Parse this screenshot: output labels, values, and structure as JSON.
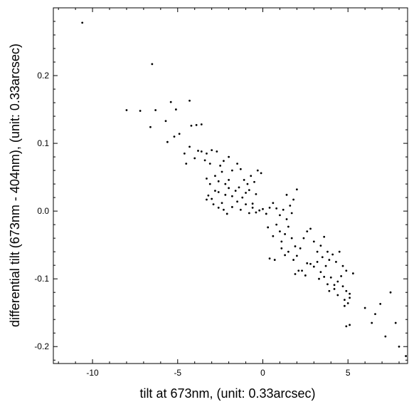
{
  "chart_data": {
    "type": "scatter",
    "title": "",
    "xlabel": "tilt at 673nm, (unit: 0.33arcsec)",
    "ylabel": "differential tilt (673nm - 404nm), (unit: 0.33arcsec)",
    "xlim": [
      -12.3,
      8.5
    ],
    "ylim": [
      -0.225,
      0.3
    ],
    "x_ticks": [
      -10,
      -5,
      0,
      5
    ],
    "x_tick_labels": [
      "-10",
      "-5",
      "0",
      "5"
    ],
    "y_ticks": [
      -0.2,
      -0.1,
      0.0,
      0.1,
      0.2
    ],
    "y_tick_labels": [
      "-0.2",
      "-0.1",
      "0.0",
      "0.1",
      "0.2"
    ],
    "grid": false,
    "marker_color": "#000000",
    "points": [
      [
        -10.6,
        0.278
      ],
      [
        -6.5,
        0.217
      ],
      [
        -8.0,
        0.149
      ],
      [
        -7.2,
        0.148
      ],
      [
        -6.6,
        0.124
      ],
      [
        -6.3,
        0.149
      ],
      [
        -5.7,
        0.133
      ],
      [
        -5.4,
        0.161
      ],
      [
        -5.1,
        0.15
      ],
      [
        -4.3,
        0.163
      ],
      [
        -5.6,
        0.102
      ],
      [
        -5.2,
        0.11
      ],
      [
        -4.9,
        0.114
      ],
      [
        -4.2,
        0.126
      ],
      [
        -3.9,
        0.127
      ],
      [
        -3.6,
        0.128
      ],
      [
        -4.6,
        0.085
      ],
      [
        -4.5,
        0.07
      ],
      [
        -4.3,
        0.095
      ],
      [
        -4.0,
        0.078
      ],
      [
        -3.8,
        0.089
      ],
      [
        -3.6,
        0.088
      ],
      [
        -3.3,
        0.085
      ],
      [
        -3.0,
        0.09
      ],
      [
        -2.7,
        0.088
      ],
      [
        -2.5,
        0.067
      ],
      [
        -2.3,
        0.074
      ],
      [
        -2.0,
        0.08
      ],
      [
        -3.4,
        0.075
      ],
      [
        -3.1,
        0.07
      ],
      [
        -3.3,
        0.048
      ],
      [
        -3.1,
        0.04
      ],
      [
        -2.8,
        0.052
      ],
      [
        -2.6,
        0.044
      ],
      [
        -2.4,
        0.058
      ],
      [
        -2.2,
        0.04
      ],
      [
        -2.0,
        0.046
      ],
      [
        -1.8,
        0.06
      ],
      [
        -1.5,
        0.07
      ],
      [
        -1.3,
        0.062
      ],
      [
        -1.1,
        0.046
      ],
      [
        -0.9,
        0.04
      ],
      [
        -0.7,
        0.052
      ],
      [
        -0.5,
        0.043
      ],
      [
        -0.3,
        0.06
      ],
      [
        -0.1,
        0.056
      ],
      [
        -3.2,
        0.023
      ],
      [
        -3.0,
        0.018
      ],
      [
        -2.8,
        0.03
      ],
      [
        -2.6,
        0.028
      ],
      [
        -2.4,
        0.012
      ],
      [
        -2.2,
        0.024
      ],
      [
        -2.0,
        0.034
      ],
      [
        -1.8,
        0.022
      ],
      [
        -1.6,
        0.03
      ],
      [
        -1.4,
        0.035
      ],
      [
        -1.2,
        0.02
      ],
      [
        -1.0,
        0.027
      ],
      [
        -0.8,
        0.031
      ],
      [
        -0.6,
        0.011
      ],
      [
        -0.4,
        0.025
      ],
      [
        -3.3,
        0.017
      ],
      [
        -2.9,
        0.01
      ],
      [
        -2.6,
        0.005
      ],
      [
        -2.3,
        0.002
      ],
      [
        -2.1,
        -0.004
      ],
      [
        -1.8,
        0.006
      ],
      [
        -1.5,
        0.014
      ],
      [
        -1.3,
        0.002
      ],
      [
        -1.0,
        0.01
      ],
      [
        -0.8,
        -0.003
      ],
      [
        -0.6,
        0.005
      ],
      [
        -0.4,
        -0.002
      ],
      [
        -0.2,
        0.001
      ],
      [
        0.0,
        0.003
      ],
      [
        0.2,
        -0.004
      ],
      [
        0.4,
        0.005
      ],
      [
        0.6,
        0.012
      ],
      [
        0.8,
        0.004
      ],
      [
        1.0,
        -0.006
      ],
      [
        1.2,
        0.002
      ],
      [
        1.4,
        -0.012
      ],
      [
        1.6,
        0.008
      ],
      [
        1.8,
        0.017
      ],
      [
        2.0,
        0.032
      ],
      [
        1.4,
        0.024
      ],
      [
        1.7,
        -0.003
      ],
      [
        0.3,
        -0.024
      ],
      [
        0.6,
        -0.037
      ],
      [
        0.8,
        -0.02
      ],
      [
        1.0,
        -0.03
      ],
      [
        1.1,
        -0.045
      ],
      [
        1.3,
        -0.034
      ],
      [
        1.5,
        -0.023
      ],
      [
        1.7,
        -0.04
      ],
      [
        1.9,
        -0.052
      ],
      [
        2.2,
        -0.055
      ],
      [
        2.4,
        -0.04
      ],
      [
        2.6,
        -0.03
      ],
      [
        2.8,
        -0.026
      ],
      [
        3.0,
        -0.045
      ],
      [
        3.2,
        -0.06
      ],
      [
        3.4,
        -0.051
      ],
      [
        3.6,
        -0.038
      ],
      [
        3.8,
        -0.06
      ],
      [
        1.1,
        -0.055
      ],
      [
        1.3,
        -0.065
      ],
      [
        1.5,
        -0.06
      ],
      [
        1.8,
        -0.072
      ],
      [
        2.0,
        -0.066
      ],
      [
        0.4,
        -0.07
      ],
      [
        0.7,
        -0.072
      ],
      [
        2.3,
        -0.088
      ],
      [
        2.6,
        -0.077
      ],
      [
        2.8,
        -0.078
      ],
      [
        3.0,
        -0.082
      ],
      [
        3.2,
        -0.075
      ],
      [
        3.4,
        -0.09
      ],
      [
        3.5,
        -0.068
      ],
      [
        3.7,
        -0.081
      ],
      [
        3.9,
        -0.072
      ],
      [
        4.1,
        -0.064
      ],
      [
        4.3,
        -0.075
      ],
      [
        4.5,
        -0.06
      ],
      [
        4.7,
        -0.081
      ],
      [
        1.9,
        -0.093
      ],
      [
        2.1,
        -0.088
      ],
      [
        2.5,
        -0.095
      ],
      [
        3.3,
        -0.1
      ],
      [
        3.6,
        -0.097
      ],
      [
        3.8,
        -0.108
      ],
      [
        4.0,
        -0.098
      ],
      [
        4.2,
        -0.115
      ],
      [
        4.4,
        -0.104
      ],
      [
        4.6,
        -0.096
      ],
      [
        4.9,
        -0.088
      ],
      [
        5.3,
        -0.092
      ],
      [
        3.9,
        -0.118
      ],
      [
        4.2,
        -0.109
      ],
      [
        4.4,
        -0.124
      ],
      [
        4.7,
        -0.111
      ],
      [
        4.9,
        -0.118
      ],
      [
        5.1,
        -0.128
      ],
      [
        4.8,
        -0.131
      ],
      [
        5.0,
        -0.136
      ],
      [
        4.8,
        -0.14
      ],
      [
        5.1,
        -0.122
      ],
      [
        4.9,
        -0.17
      ],
      [
        5.1,
        -0.168
      ],
      [
        6.0,
        -0.143
      ],
      [
        6.4,
        -0.165
      ],
      [
        6.6,
        -0.152
      ],
      [
        6.9,
        -0.137
      ],
      [
        7.2,
        -0.185
      ],
      [
        7.5,
        -0.12
      ],
      [
        7.8,
        -0.165
      ],
      [
        8.0,
        -0.2
      ],
      [
        8.4,
        -0.214
      ]
    ]
  }
}
